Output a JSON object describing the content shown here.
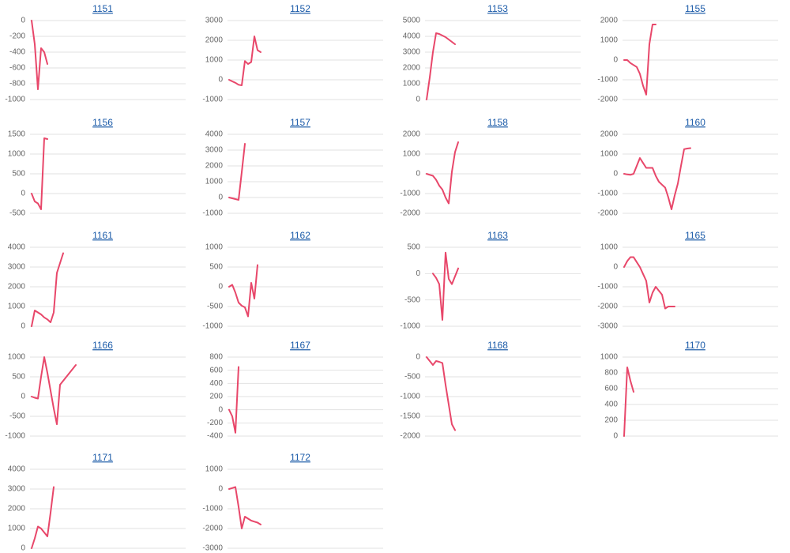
{
  "chart_data": [
    {
      "type": "line",
      "title": "1151",
      "color": "#e8476a",
      "values": [
        0,
        -300,
        -870,
        -350,
        -400,
        -550
      ],
      "ylim": [
        -1000,
        0
      ],
      "yticks": [
        0,
        -200,
        -400,
        -600,
        -800,
        -1000
      ]
    },
    {
      "type": "line",
      "title": "1152",
      "color": "#e8476a",
      "values": [
        0,
        -80,
        -150,
        -250,
        -280,
        950,
        800,
        900,
        2200,
        1500,
        1400
      ],
      "ylim": [
        -1000,
        3000
      ],
      "yticks": [
        3000,
        2000,
        1000,
        0,
        -1000
      ]
    },
    {
      "type": "line",
      "title": "1153",
      "color": "#e8476a",
      "values": [
        0,
        1400,
        3000,
        4200,
        4150,
        4050,
        3950,
        3800,
        3650,
        3500
      ],
      "ylim": [
        0,
        5000
      ],
      "yticks": [
        5000,
        4000,
        3000,
        2000,
        1000,
        0
      ]
    },
    {
      "type": "line",
      "title": "1155",
      "color": "#e8476a",
      "values": [
        0,
        0,
        -150,
        -250,
        -350,
        -700,
        -1300,
        -1750,
        800,
        1800,
        1800
      ],
      "ylim": [
        -2000,
        2000
      ],
      "yticks": [
        2000,
        1000,
        0,
        -1000,
        -2000
      ]
    },
    {
      "type": "line",
      "title": "1156",
      "color": "#e8476a",
      "values": [
        0,
        -200,
        -250,
        -400,
        1400,
        1380
      ],
      "ylim": [
        -500,
        1500
      ],
      "yticks": [
        1500,
        1000,
        500,
        0,
        -500
      ]
    },
    {
      "type": "line",
      "title": "1157",
      "color": "#e8476a",
      "values": [
        0,
        -50,
        -100,
        -150,
        1600,
        3400
      ],
      "ylim": [
        -1000,
        4000
      ],
      "yticks": [
        4000,
        3000,
        2000,
        1000,
        0,
        -1000
      ]
    },
    {
      "type": "line",
      "title": "1158",
      "color": "#e8476a",
      "values": [
        0,
        -50,
        -100,
        -300,
        -600,
        -800,
        -1200,
        -1500,
        100,
        1100,
        1600
      ],
      "ylim": [
        -2000,
        2000
      ],
      "yticks": [
        2000,
        1000,
        0,
        -1000,
        -2000
      ]
    },
    {
      "type": "line",
      "title": "1160",
      "color": "#e8476a",
      "values": [
        0,
        -30,
        -50,
        0,
        400,
        800,
        550,
        300,
        300,
        300,
        -100,
        -400,
        -550,
        -700,
        -1200,
        -1800,
        -1100,
        -500,
        400,
        1250,
        1280,
        1300
      ],
      "ylim": [
        -2000,
        2000
      ],
      "yticks": [
        2000,
        1000,
        0,
        -1000,
        -2000
      ]
    },
    {
      "type": "line",
      "title": "1161",
      "color": "#e8476a",
      "values": [
        0,
        800,
        700,
        600,
        450,
        350,
        200,
        700,
        2700,
        3200,
        3700
      ],
      "ylim": [
        0,
        4000
      ],
      "yticks": [
        4000,
        3000,
        2000,
        1000,
        0
      ]
    },
    {
      "type": "line",
      "title": "1162",
      "color": "#e8476a",
      "values": [
        0,
        50,
        -150,
        -400,
        -480,
        -520,
        -750,
        100,
        -300,
        550
      ],
      "ylim": [
        -1000,
        1000
      ],
      "yticks": [
        1000,
        500,
        0,
        -500,
        -1000
      ]
    },
    {
      "type": "line",
      "title": "1163",
      "color": "#e8476a",
      "values": [
        null,
        null,
        0,
        -80,
        -200,
        -880,
        400,
        -100,
        -200,
        -50,
        100
      ],
      "ylim": [
        -1000,
        500
      ],
      "yticks": [
        500,
        0,
        -500,
        -1000
      ]
    },
    {
      "type": "line",
      "title": "1165",
      "color": "#e8476a",
      "values": [
        0,
        300,
        500,
        500,
        250,
        0,
        -350,
        -700,
        -1800,
        -1300,
        -1000,
        -1200,
        -1400,
        -2100,
        -2000,
        -2000,
        -2000
      ],
      "ylim": [
        -3000,
        1000
      ],
      "yticks": [
        1000,
        0,
        -1000,
        -2000,
        -3000
      ]
    },
    {
      "type": "line",
      "title": "1166",
      "color": "#e8476a",
      "values": [
        0,
        -30,
        -50,
        500,
        1000,
        600,
        150,
        -300,
        -700,
        300,
        400,
        500,
        600,
        700,
        800
      ],
      "ylim": [
        -1000,
        1000
      ],
      "yticks": [
        1000,
        500,
        0,
        -500,
        -1000
      ]
    },
    {
      "type": "line",
      "title": "1167",
      "color": "#e8476a",
      "values": [
        0,
        -100,
        -350,
        650
      ],
      "ylim": [
        -400,
        800
      ],
      "yticks": [
        800,
        600,
        400,
        200,
        0,
        -200,
        -400
      ]
    },
    {
      "type": "line",
      "title": "1168",
      "color": "#e8476a",
      "values": [
        0,
        -100,
        -200,
        -100,
        -120,
        -150,
        -700,
        -1200,
        -1700,
        -1850
      ],
      "ylim": [
        -2000,
        0
      ],
      "yticks": [
        0,
        -500,
        -1000,
        -1500,
        -2000
      ]
    },
    {
      "type": "line",
      "title": "1170",
      "color": "#e8476a",
      "values": [
        0,
        870,
        700,
        560
      ],
      "ylim": [
        0,
        1000
      ],
      "yticks": [
        1000,
        800,
        600,
        400,
        200,
        0
      ]
    },
    {
      "type": "line",
      "title": "1171",
      "color": "#e8476a",
      "values": [
        0,
        500,
        1100,
        1000,
        800,
        600,
        1800,
        3100
      ],
      "ylim": [
        0,
        4000
      ],
      "yticks": [
        4000,
        3000,
        2000,
        1000,
        0
      ]
    },
    {
      "type": "line",
      "title": "1172",
      "color": "#e8476a",
      "values": [
        0,
        50,
        100,
        -900,
        -2000,
        -1400,
        -1500,
        -1600,
        -1650,
        -1700,
        -1800
      ],
      "ylim": [
        -3000,
        1000
      ],
      "yticks": [
        1000,
        0,
        -1000,
        -2000,
        -3000
      ]
    }
  ]
}
